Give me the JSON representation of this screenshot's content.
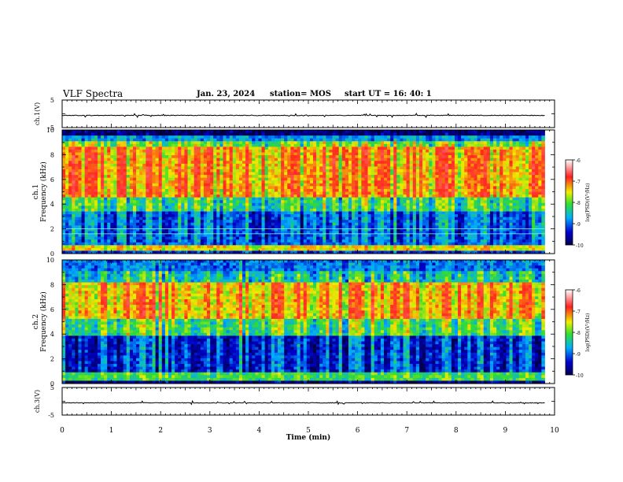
{
  "header": {
    "title": "VLF Spectra",
    "date": "Jan. 23, 2024",
    "station": "station= MOS",
    "start": "start  UT =   16: 40: 1"
  },
  "chart_data": [
    {
      "type": "line",
      "panel": "ch1-waveform",
      "ylabel": "ch.1(V)",
      "y_ticks": [
        "5",
        "-5"
      ],
      "ylim": [
        -5,
        5
      ],
      "xlim": [
        0,
        10
      ],
      "description_value": "flat trace near 0 V with small spikes",
      "baseline": 0.0
    },
    {
      "type": "heatmap",
      "panel": "ch1-spectrogram",
      "ylabel_ch": "ch.1",
      "ylabel": "Frequency (kHz)",
      "y_ticks": [
        "0",
        "2",
        "4",
        "6",
        "8",
        "10"
      ],
      "ylim": [
        0,
        10
      ],
      "xlim": [
        0,
        9.8
      ],
      "colorbar": {
        "label": "log(PSD)(V²/Hz)",
        "ticks": [
          "-6",
          "-7",
          "-8",
          "-9",
          "-10"
        ],
        "range": [
          -10,
          -6
        ]
      }
    },
    {
      "type": "heatmap",
      "panel": "ch2-spectrogram",
      "ylabel_ch": "ch.2",
      "ylabel": "Frequency (kHz)",
      "y_ticks": [
        "0",
        "2",
        "4",
        "6",
        "8",
        "10"
      ],
      "ylim": [
        0,
        10
      ],
      "xlim": [
        0,
        9.8
      ],
      "colorbar": {
        "label": "log(PSD)(V²/Hz)",
        "ticks": [
          "-6",
          "-7",
          "-8",
          "-9",
          "-10"
        ],
        "range": [
          -10,
          -6
        ]
      }
    },
    {
      "type": "line",
      "panel": "ch3-waveform",
      "ylabel": "ch.3(V)",
      "y_ticks": [
        "5",
        "-5"
      ],
      "ylim": [
        -5,
        5
      ],
      "xlim": [
        0,
        10
      ],
      "baseline": 0.0
    }
  ],
  "x_axis": {
    "label": "Time  (min)",
    "ticks": [
      "0",
      "1",
      "2",
      "3",
      "4",
      "5",
      "6",
      "7",
      "8",
      "9",
      "10"
    ]
  },
  "colors": {
    "low": "#0000a0",
    "mid_low": "#00c0ff",
    "mid": "#30e030",
    "mid_high": "#f0e000",
    "high": "#ff2020"
  }
}
